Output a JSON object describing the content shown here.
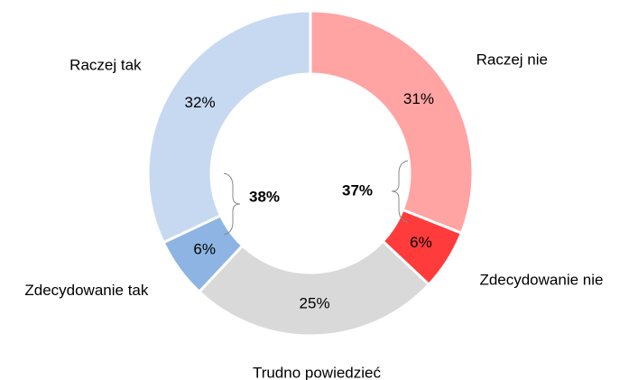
{
  "chart_data": {
    "type": "donut",
    "categories": [
      "Raczej nie",
      "Zdecydowanie nie",
      "Trudno powiedzieć",
      "Zdecydowanie tak",
      "Raczej tak"
    ],
    "values": [
      31,
      6,
      25,
      6,
      32
    ],
    "value_labels": [
      "31%",
      "6%",
      "25%",
      "6%",
      "32%"
    ],
    "colors": [
      "#ffa3a3",
      "#ff3b3b",
      "#d9d9d9",
      "#8db4e2",
      "#c6d9f1"
    ],
    "annotations": [
      "38%",
      "37%"
    ]
  }
}
